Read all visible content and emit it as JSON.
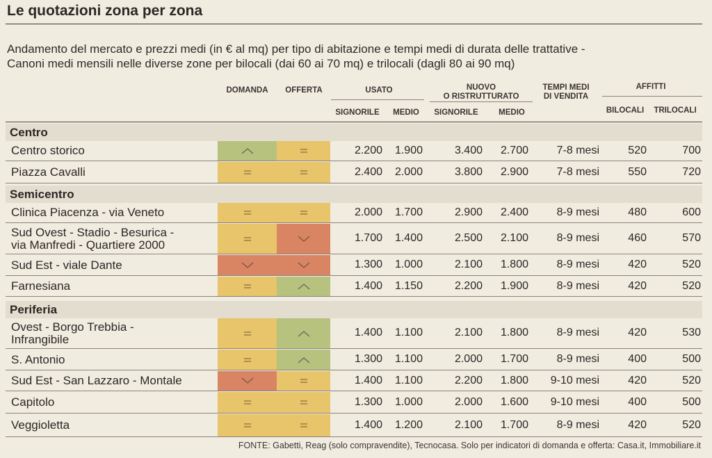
{
  "title": "Le quotazioni zona per zona",
  "subtitle": [
    "Andamento del mercato e prezzi medi (in € al mq) per tipo di abitazione e tempi medi di durata delle trattative -",
    "Canoni medi mensili nelle diverse zone per bilocali (dai 60 ai 70 mq) e trilocali (dagli 80 ai 90 mq)"
  ],
  "headers": {
    "domanda": "DOMANDA",
    "offerta": "OFFERTA",
    "usato": "USATO",
    "nuovo_1": "NUOVO",
    "nuovo_2": "O RISTRUTTURATO",
    "tempi_1": "TEMPI MEDI",
    "tempi_2": "DI VENDITA",
    "affitti": "AFFITTI",
    "signorile": "SIGNORILE",
    "medio": "MEDIO",
    "bilocali": "BILOCALI",
    "trilocali": "TRILOCALI"
  },
  "indicator_colors": {
    "up": "#b7c27e",
    "equal": "#e8c46a",
    "down": "#d98463"
  },
  "indicator_icons": {
    "up": "caret-up-icon",
    "equal": "equals-icon",
    "down": "caret-down-icon"
  },
  "sections": [
    {
      "name": "Centro",
      "rows": [
        {
          "zona": [
            "Centro storico"
          ],
          "domanda": "up",
          "offerta": "equal",
          "usato_sig": "2.200",
          "usato_med": "1.900",
          "nuovo_sig": "3.400",
          "nuovo_med": "2.700",
          "tempi": "7-8 mesi",
          "bilocali": "520",
          "trilocali": "700"
        },
        {
          "zona": [
            "Piazza Cavalli"
          ],
          "domanda": "equal",
          "offerta": "equal",
          "usato_sig": "2.400",
          "usato_med": "2.000",
          "nuovo_sig": "3.800",
          "nuovo_med": "2.900",
          "tempi": "7-8 mesi",
          "bilocali": "550",
          "trilocali": "720"
        }
      ]
    },
    {
      "name": "Semicentro",
      "rows": [
        {
          "zona": [
            "Clinica Piacenza - via Veneto"
          ],
          "domanda": "equal",
          "offerta": "equal",
          "usato_sig": "2.000",
          "usato_med": "1.700",
          "nuovo_sig": "2.900",
          "nuovo_med": "2.400",
          "tempi": "8-9 mesi",
          "bilocali": "480",
          "trilocali": "600"
        },
        {
          "zona": [
            "Sud Ovest - Stadio - Besurica -",
            "via Manfredi - Quartiere 2000"
          ],
          "domanda": "equal",
          "offerta": "down",
          "usato_sig": "1.700",
          "usato_med": "1.400",
          "nuovo_sig": "2.500",
          "nuovo_med": "2.100",
          "tempi": "8-9 mesi",
          "bilocali": "460",
          "trilocali": "570"
        },
        {
          "zona": [
            "Sud Est - viale Dante"
          ],
          "domanda": "down",
          "offerta": "down",
          "usato_sig": "1.300",
          "usato_med": "1.000",
          "nuovo_sig": "2.100",
          "nuovo_med": "1.800",
          "tempi": "8-9 mesi",
          "bilocali": "420",
          "trilocali": "520"
        },
        {
          "zona": [
            "Farnesiana"
          ],
          "domanda": "equal",
          "offerta": "up",
          "usato_sig": "1.400",
          "usato_med": "1.150",
          "nuovo_sig": "2.200",
          "nuovo_med": "1.900",
          "tempi": "8-9 mesi",
          "bilocali": "420",
          "trilocali": "520"
        }
      ]
    },
    {
      "name": "Periferia",
      "rows": [
        {
          "zona": [
            "Ovest - Borgo Trebbia -",
            "Infrangibile"
          ],
          "domanda": "equal",
          "offerta": "up",
          "usato_sig": "1.400",
          "usato_med": "1.100",
          "nuovo_sig": "2.100",
          "nuovo_med": "1.800",
          "tempi": "8-9 mesi",
          "bilocali": "420",
          "trilocali": "530"
        },
        {
          "zona": [
            "S. Antonio"
          ],
          "domanda": "equal",
          "offerta": "up",
          "usato_sig": "1.300",
          "usato_med": "1.100",
          "nuovo_sig": "2.000",
          "nuovo_med": "1.700",
          "tempi": "8-9 mesi",
          "bilocali": "400",
          "trilocali": "500"
        },
        {
          "zona": [
            "Sud Est - San Lazzaro - Montale"
          ],
          "domanda": "down",
          "offerta": "equal",
          "usato_sig": "1.400",
          "usato_med": "1.100",
          "nuovo_sig": "2.200",
          "nuovo_med": "1.800",
          "tempi": "9-10 mesi",
          "bilocali": "420",
          "trilocali": "520"
        },
        {
          "zona": [
            "Capitolo"
          ],
          "domanda": "equal",
          "offerta": "equal",
          "usato_sig": "1.300",
          "usato_med": "1.000",
          "nuovo_sig": "2.000",
          "nuovo_med": "1.600",
          "tempi": "9-10 mesi",
          "bilocali": "400",
          "trilocali": "500"
        },
        {
          "zona": [
            "Veggioletta"
          ],
          "domanda": "equal",
          "offerta": "equal",
          "usato_sig": "1.400",
          "usato_med": "1.200",
          "nuovo_sig": "2.100",
          "nuovo_med": "1.700",
          "tempi": "8-9 mesi",
          "bilocali": "420",
          "trilocali": "520"
        }
      ]
    }
  ],
  "footer": "FONTE: Gabetti, Reag (solo compravendite), Tecnocasa. Solo per indicatori di domanda e offerta: Casa.it, Immobiliare.it"
}
